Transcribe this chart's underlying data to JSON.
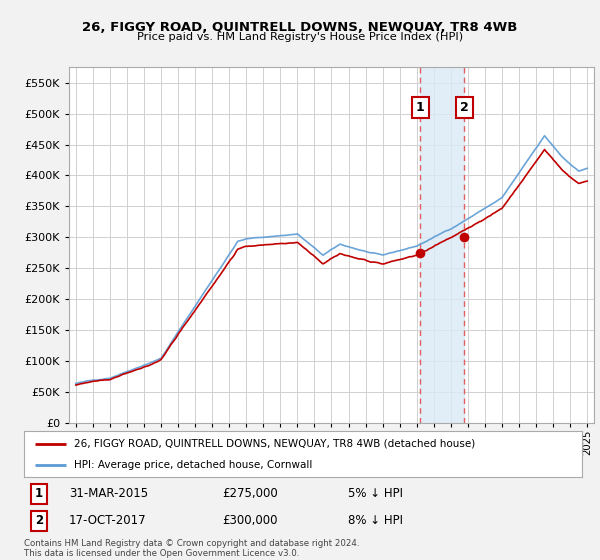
{
  "title": "26, FIGGY ROAD, QUINTRELL DOWNS, NEWQUAY, TR8 4WB",
  "subtitle": "Price paid vs. HM Land Registry's House Price Index (HPI)",
  "ylabel_ticks": [
    "£0",
    "£50K",
    "£100K",
    "£150K",
    "£200K",
    "£250K",
    "£300K",
    "£350K",
    "£400K",
    "£450K",
    "£500K",
    "£550K"
  ],
  "ytick_values": [
    0,
    50000,
    100000,
    150000,
    200000,
    250000,
    300000,
    350000,
    400000,
    450000,
    500000,
    550000
  ],
  "ylim": [
    0,
    575000
  ],
  "hpi_color": "#5b9bd5",
  "price_color": "#c00000",
  "background_color": "#f2f2f2",
  "plot_bg_color": "#ffffff",
  "grid_color": "#d0d0d0",
  "sale1_date": "31-MAR-2015",
  "sale1_price": 275000,
  "sale1_pct": "5% ↓ HPI",
  "sale2_date": "17-OCT-2017",
  "sale2_price": 300000,
  "sale2_pct": "8% ↓ HPI",
  "legend_line1": "26, FIGGY ROAD, QUINTRELL DOWNS, NEWQUAY, TR8 4WB (detached house)",
  "legend_line2": "HPI: Average price, detached house, Cornwall",
  "footnote": "Contains HM Land Registry data © Crown copyright and database right 2024.\nThis data is licensed under the Open Government Licence v3.0.",
  "sale1_x": 2015.21,
  "sale2_x": 2017.79,
  "span_color": "#daeaf6",
  "vline_color": "#e06060",
  "box1_color": "#c00000",
  "box2_color": "#c00000"
}
